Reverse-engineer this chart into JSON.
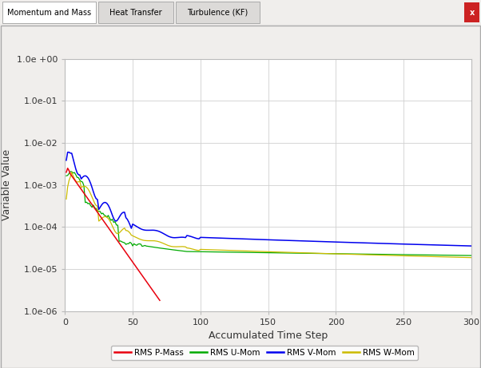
{
  "title_tabs": [
    "Momentum and Mass",
    "Heat Transfer",
    "Turbulence (KF)"
  ],
  "xlabel": "Accumulated Time Step",
  "ylabel": "Variable Value",
  "xlim": [
    0,
    300
  ],
  "ylim_log": [
    -6,
    0
  ],
  "yticks": [
    1e-06,
    1e-05,
    0.0001,
    0.001,
    0.01,
    0.1,
    1.0
  ],
  "ytick_labels": [
    "1.0e-06",
    "1.0e-05",
    "1.0e-04",
    "1.0e-03",
    "1.0e-02",
    "1.0e-01",
    "1.0e +00"
  ],
  "xticks": [
    0,
    50,
    100,
    150,
    200,
    250,
    300
  ],
  "colors": {
    "P-Mass": "#e8000e",
    "U-Mom": "#00aa00",
    "V-Mom": "#0000ee",
    "W-Mom": "#ccbb00"
  },
  "legend_labels": [
    "RMS P-Mass",
    "RMS U-Mom",
    "RMS V-Mom",
    "RMS W-Mom"
  ],
  "bg_color": "#f0eeec",
  "plot_bg_color": "#ffffff",
  "grid_color": "#d0d0d0",
  "tab_bar_color": "#e8e6e4",
  "active_tab_color": "#ffffff",
  "inactive_tab_color": "#dcdad8"
}
